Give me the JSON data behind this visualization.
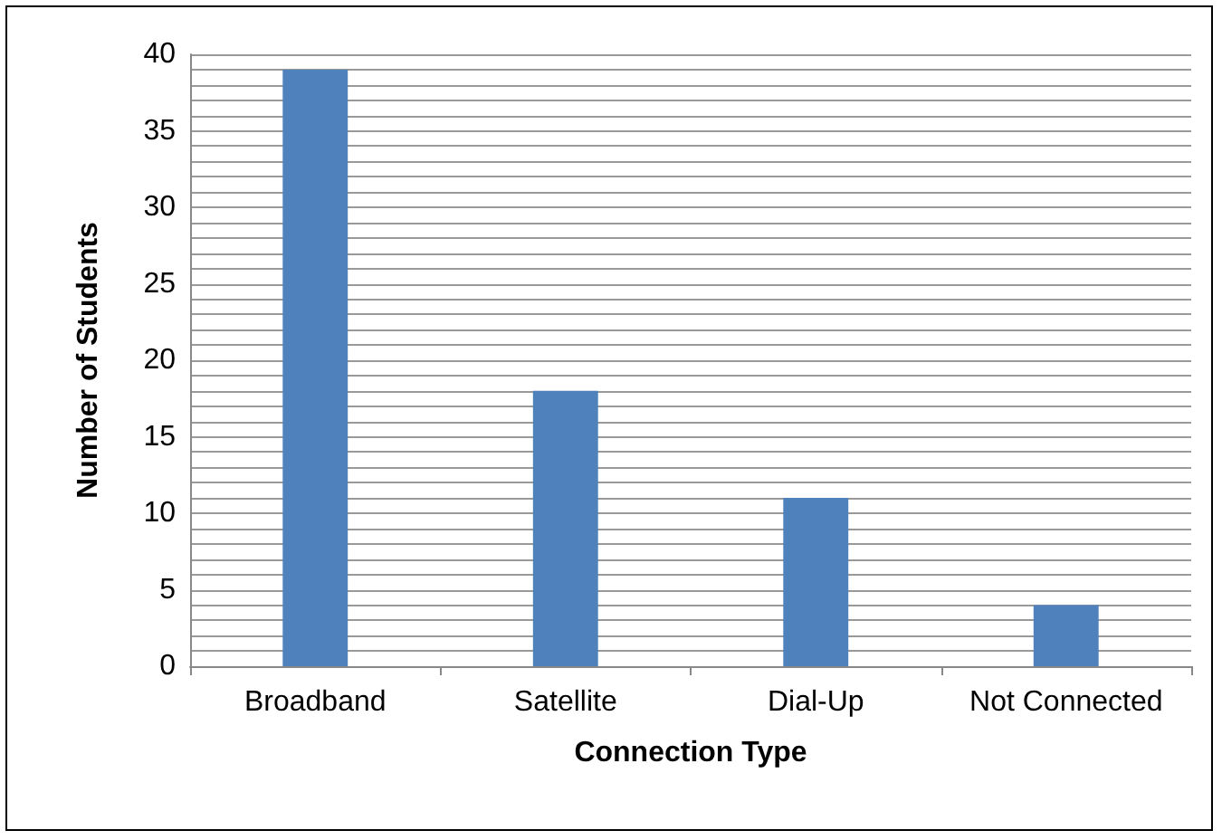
{
  "chart_data": {
    "type": "bar",
    "xlabel": "Connection Type",
    "ylabel": "Number of Students",
    "categories": [
      "Broadband",
      "Satellite",
      "Dial-Up",
      "Not Connected"
    ],
    "values": [
      39,
      18,
      11,
      4
    ],
    "color": "#4f81bd",
    "ylim": [
      0,
      40
    ],
    "yticks": [
      0,
      {
        "value": 1,
        "label": null
      },
      {
        "value": 2,
        "label": null
      },
      {
        "value": 3,
        "label": null
      },
      {
        "value": 4,
        "label": null
      },
      5,
      {
        "value": 6,
        "label": null
      },
      {
        "value": 7,
        "label": null
      },
      {
        "value": 8,
        "label": null
      },
      {
        "value": 9,
        "label": null
      },
      10,
      {
        "value": 11,
        "label": null
      },
      {
        "value": 12,
        "label": null
      },
      {
        "value": 13,
        "label": null
      },
      {
        "value": 14,
        "label": null
      },
      15,
      {
        "value": 16,
        "label": null
      },
      {
        "value": 17,
        "label": null
      },
      {
        "value": 18,
        "label": null
      },
      {
        "value": 19,
        "label": null
      },
      20,
      {
        "value": 21,
        "label": null
      },
      {
        "value": 22,
        "label": null
      },
      {
        "value": 23,
        "label": null
      },
      {
        "value": 24,
        "label": null
      },
      25,
      {
        "value": 26,
        "label": null
      },
      {
        "value": 27,
        "label": null
      },
      {
        "value": 28,
        "label": null
      },
      {
        "value": 29,
        "label": null
      },
      30,
      {
        "value": 31,
        "label": null
      },
      {
        "value": 32,
        "label": null
      },
      {
        "value": 33,
        "label": null
      },
      {
        "value": 34,
        "label": null
      },
      35,
      {
        "value": 36,
        "label": null
      },
      {
        "value": 37,
        "label": null
      },
      {
        "value": 38,
        "label": null
      },
      {
        "value": 39,
        "label": null
      },
      40
    ],
    "grid": true
  }
}
